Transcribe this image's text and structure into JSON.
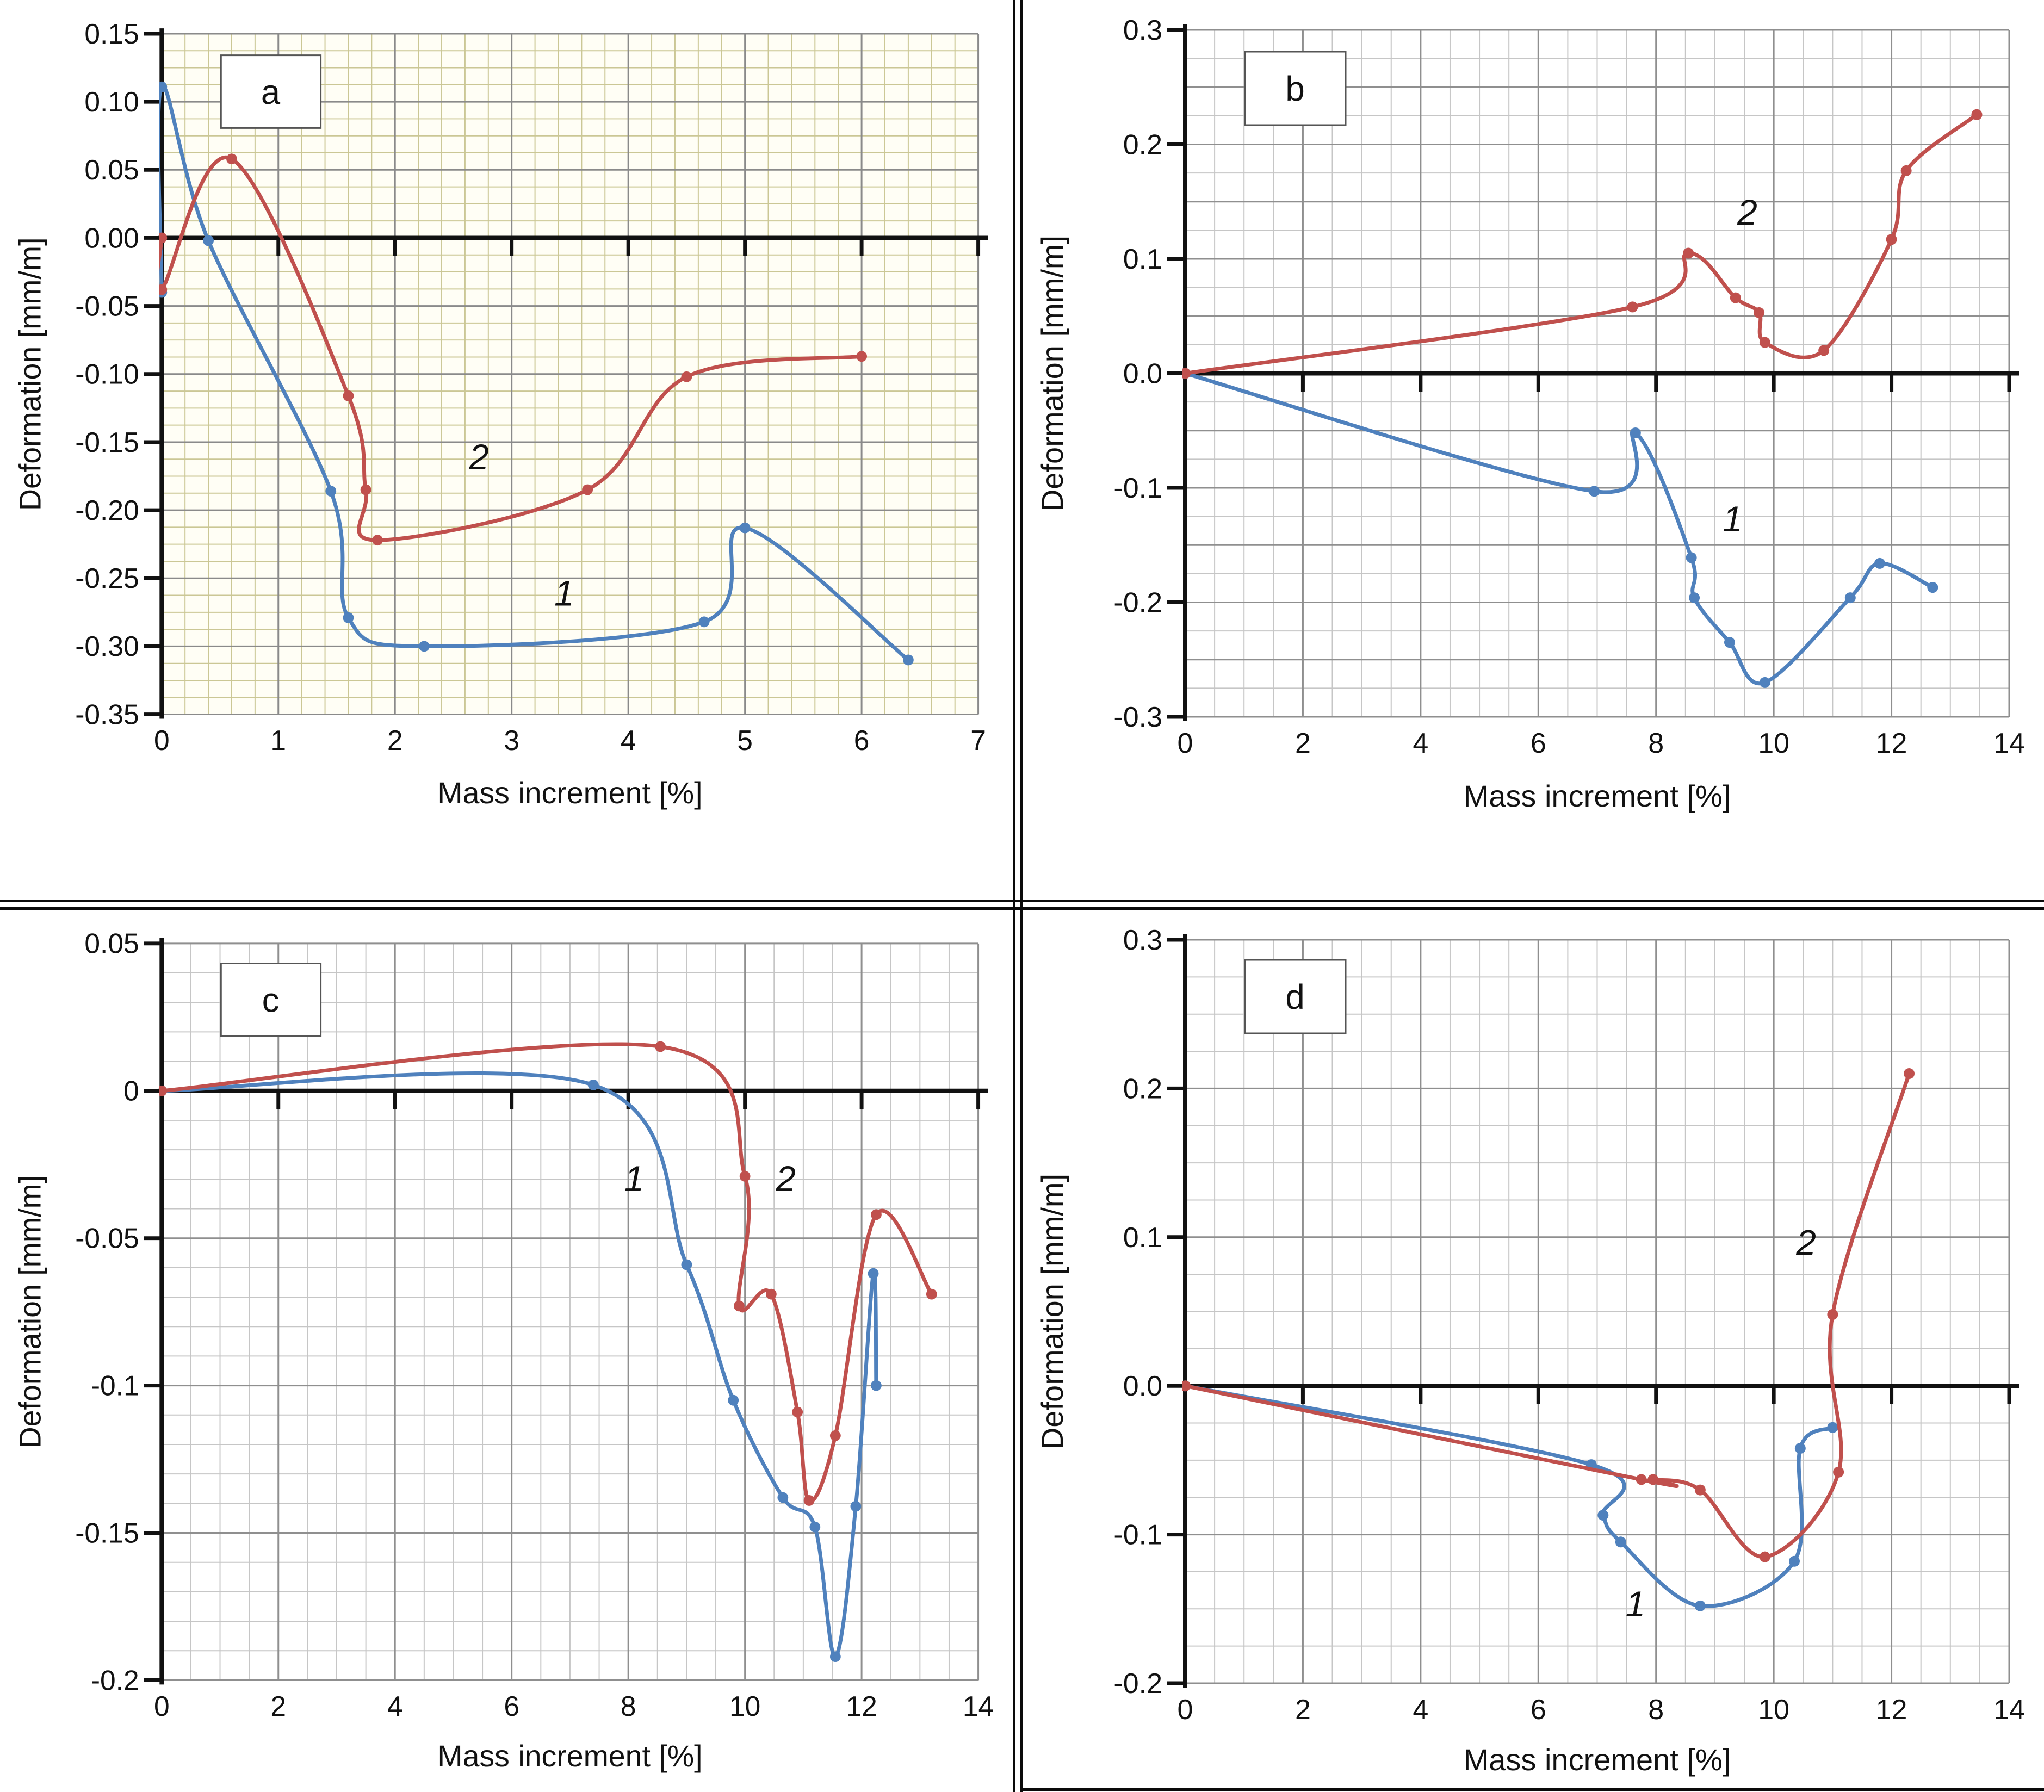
{
  "figure": {
    "xlabel": "Mass increment [%]",
    "ylabel": "Deformation [mm/m]",
    "divider_color": "#0a0a0a",
    "panel_letters": [
      "a",
      "b",
      "c",
      "d"
    ]
  },
  "chart_data": [
    {
      "id": "a",
      "type": "line",
      "panel_label": "a",
      "xlabel": "Mass increment [%]",
      "ylabel": "Deformation [mm/m]",
      "xlim": [
        0,
        7
      ],
      "ylim": [
        -0.35,
        0.15
      ],
      "x_ticks": [
        0,
        1,
        2,
        3,
        4,
        5,
        6,
        7
      ],
      "x_tick_labels": [
        "0",
        "1",
        "2",
        "3",
        "4",
        "5",
        "6",
        "7"
      ],
      "y_ticks": [
        0.15,
        0.1,
        0.05,
        0.0,
        -0.05,
        -0.1,
        -0.15,
        -0.2,
        -0.25,
        -0.3,
        -0.35
      ],
      "y_tick_labels": [
        "0.15",
        "0.10",
        "0.05",
        "0.00",
        "-0.05",
        "-0.10",
        "-0.15",
        "-0.20",
        "-0.25",
        "-0.30",
        "-0.35"
      ],
      "x_minor_step": 0.2,
      "y_minor_step": 0.0125,
      "x_major_grid_step": 1,
      "y_major_grid_step": 0.05,
      "grid": {
        "minor_color": "#cbc795",
        "major_color": "#8a8a8a",
        "background": "#fffef5"
      },
      "axis_color": "#111111",
      "legend_position": "none",
      "series": [
        {
          "name": "1",
          "color": "#4f81bd",
          "points": [
            [
              0,
              -0.04
            ],
            [
              0,
              0.111
            ],
            [
              0.4,
              -0.002
            ],
            [
              1.45,
              -0.186
            ],
            [
              1.6,
              -0.279
            ],
            [
              2.25,
              -0.3
            ],
            [
              4.65,
              -0.282
            ],
            [
              5.0,
              -0.213
            ],
            [
              6.4,
              -0.31
            ]
          ],
          "label_pos": [
            3.45,
            -0.27
          ]
        },
        {
          "name": "2",
          "color": "#c0504d",
          "points": [
            [
              0,
              0.0
            ],
            [
              0,
              -0.038
            ],
            [
              0.6,
              0.058
            ],
            [
              1.6,
              -0.116
            ],
            [
              1.75,
              -0.185
            ],
            [
              1.85,
              -0.222
            ],
            [
              3.65,
              -0.185
            ],
            [
              4.5,
              -0.102
            ],
            [
              6.0,
              -0.087
            ]
          ],
          "label_pos": [
            2.72,
            -0.17
          ]
        }
      ]
    },
    {
      "id": "b",
      "type": "line",
      "panel_label": "b",
      "xlabel": "Mass increment [%]",
      "ylabel": "Deformation [mm/m]",
      "xlim": [
        0,
        14
      ],
      "ylim": [
        -0.3,
        0.3
      ],
      "x_ticks": [
        0,
        2,
        4,
        6,
        8,
        10,
        12,
        14
      ],
      "x_tick_labels": [
        "0",
        "2",
        "4",
        "6",
        "8",
        "10",
        "12",
        "14"
      ],
      "y_ticks": [
        0.3,
        0.2,
        0.1,
        0.0,
        -0.1,
        -0.2,
        -0.3
      ],
      "y_tick_labels": [
        "0.3",
        "0.2",
        "0.1",
        "0.0",
        "-0.1",
        "-0.2",
        "-0.3"
      ],
      "x_minor_step": 0.5,
      "y_minor_step": 0.025,
      "x_major_grid_step": 2,
      "y_major_grid_step": 0.05,
      "grid": {
        "minor_color": "#c6c6c6",
        "major_color": "#8f8f8f",
        "background": "#ffffff"
      },
      "axis_color": "#111111",
      "legend_position": "none",
      "series": [
        {
          "name": "1",
          "color": "#4f81bd",
          "points": [
            [
              0,
              0
            ],
            [
              6.95,
              -0.103
            ],
            [
              7.65,
              -0.052
            ],
            [
              8.6,
              -0.161
            ],
            [
              8.65,
              -0.196
            ],
            [
              9.25,
              -0.235
            ],
            [
              9.85,
              -0.27
            ],
            [
              11.3,
              -0.196
            ],
            [
              11.8,
              -0.166
            ],
            [
              12.7,
              -0.187
            ]
          ],
          "label_pos": [
            9.3,
            -0.138
          ]
        },
        {
          "name": "2",
          "color": "#c0504d",
          "points": [
            [
              0,
              0
            ],
            [
              7.6,
              0.058
            ],
            [
              8.55,
              0.105
            ],
            [
              9.35,
              0.066
            ],
            [
              9.75,
              0.053
            ],
            [
              9.85,
              0.027
            ],
            [
              10.85,
              0.02
            ],
            [
              12.0,
              0.117
            ],
            [
              12.25,
              0.177
            ],
            [
              13.45,
              0.226
            ]
          ],
          "label_pos": [
            9.55,
            0.13
          ]
        }
      ]
    },
    {
      "id": "c",
      "type": "line",
      "panel_label": "c",
      "xlabel": "Mass increment [%]",
      "ylabel": "Deformation [mm/m]",
      "xlim": [
        0,
        14
      ],
      "ylim": [
        -0.2,
        0.05
      ],
      "x_ticks": [
        0,
        2,
        4,
        6,
        8,
        10,
        12,
        14
      ],
      "x_tick_labels": [
        "0",
        "2",
        "4",
        "6",
        "8",
        "10",
        "12",
        "14"
      ],
      "y_ticks": [
        0.05,
        0,
        -0.05,
        -0.1,
        -0.15,
        -0.2
      ],
      "y_tick_labels": [
        "0.05",
        "0",
        "-0.05",
        "-0.1",
        "-0.15",
        "-0.2"
      ],
      "x_minor_step": 0.5,
      "y_minor_step": 0.01,
      "x_major_grid_step": 2,
      "y_major_grid_step": 0.05,
      "grid": {
        "minor_color": "#c6c6c6",
        "major_color": "#8f8f8f",
        "background": "#ffffff"
      },
      "axis_color": "#111111",
      "legend_position": "none",
      "series": [
        {
          "name": "1",
          "color": "#4f81bd",
          "points": [
            [
              0,
              0
            ],
            [
              7.4,
              0.002
            ],
            [
              9.0,
              -0.059
            ],
            [
              9.8,
              -0.105
            ],
            [
              10.65,
              -0.138
            ],
            [
              11.2,
              -0.148
            ],
            [
              11.55,
              -0.192
            ],
            [
              11.9,
              -0.141
            ],
            [
              12.2,
              -0.062
            ],
            [
              12.25,
              -0.1
            ]
          ],
          "label_pos": [
            8.1,
            -0.034
          ]
        },
        {
          "name": "2",
          "color": "#c0504d",
          "points": [
            [
              0,
              0
            ],
            [
              8.55,
              0.015
            ],
            [
              10.0,
              -0.029
            ],
            [
              9.9,
              -0.073
            ],
            [
              10.45,
              -0.069
            ],
            [
              10.9,
              -0.109
            ],
            [
              11.1,
              -0.139
            ],
            [
              11.55,
              -0.117
            ],
            [
              12.25,
              -0.042
            ],
            [
              13.2,
              -0.069
            ]
          ],
          "label_pos": [
            10.7,
            -0.034
          ]
        }
      ]
    },
    {
      "id": "d",
      "type": "line",
      "panel_label": "d",
      "xlabel": "Mass increment [%]",
      "ylabel": "Deformation [mm/m]",
      "xlim": [
        0,
        14
      ],
      "ylim": [
        -0.2,
        0.3
      ],
      "x_ticks": [
        0,
        2,
        4,
        6,
        8,
        10,
        12,
        14
      ],
      "x_tick_labels": [
        "0",
        "2",
        "4",
        "6",
        "8",
        "10",
        "12",
        "14"
      ],
      "y_ticks": [
        0.3,
        0.2,
        0.1,
        0.0,
        -0.1,
        -0.2
      ],
      "y_tick_labels": [
        "0.3",
        "0.2",
        "0.1",
        "0.0",
        "-0.1",
        "-0.2"
      ],
      "x_minor_step": 0.5,
      "y_minor_step": 0.025,
      "x_major_grid_step": 2,
      "y_major_grid_step": 0.1,
      "grid": {
        "minor_color": "#c6c6c6",
        "major_color": "#8f8f8f",
        "background": "#ffffff"
      },
      "axis_color": "#111111",
      "legend_position": "none",
      "series": [
        {
          "name": "1",
          "color": "#4f81bd",
          "points": [
            [
              0,
              0
            ],
            [
              6.9,
              -0.053
            ],
            [
              7.1,
              -0.087
            ],
            [
              7.4,
              -0.105
            ],
            [
              8.75,
              -0.148
            ],
            [
              10.35,
              -0.118
            ],
            [
              10.45,
              -0.042
            ],
            [
              11.0,
              -0.028
            ]
          ],
          "label_pos": [
            7.65,
            -0.155
          ]
        },
        {
          "name": "2",
          "color": "#c0504d",
          "points": [
            [
              0,
              0
            ],
            [
              7.75,
              -0.063
            ],
            [
              7.95,
              -0.063
            ],
            [
              8.75,
              -0.07
            ],
            [
              9.85,
              -0.115
            ],
            [
              11.1,
              -0.058
            ],
            [
              11.0,
              0.048
            ],
            [
              12.3,
              0.21
            ]
          ],
          "label_pos": [
            10.55,
            0.088
          ]
        }
      ]
    }
  ]
}
